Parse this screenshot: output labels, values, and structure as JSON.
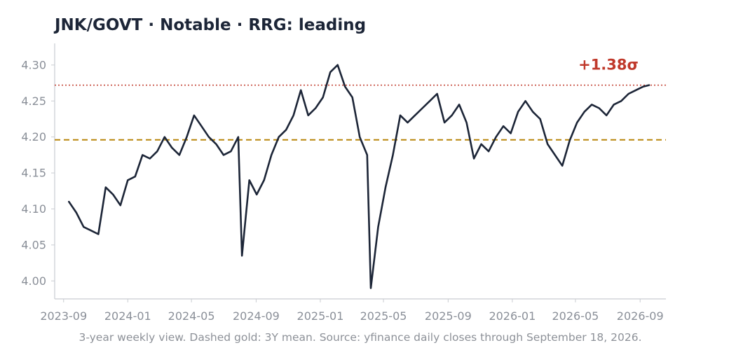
{
  "chart_data": {
    "type": "line",
    "title": "JNK/GOVT  ·  Notable  ·  RRG: leading",
    "xlabel": "",
    "ylabel": "",
    "x_ticks": [
      "2023-09",
      "2024-01",
      "2024-05",
      "2024-09",
      "2025-01",
      "2025-05",
      "2025-09",
      "2026-01",
      "2026-05",
      "2026-09"
    ],
    "y_ticks": [
      "4.00",
      "4.05",
      "4.10",
      "4.15",
      "4.20",
      "4.25",
      "4.30"
    ],
    "xlim": [
      "2023-08-15",
      "2026-10-20"
    ],
    "ylim": [
      3.975,
      4.33
    ],
    "mean_line": {
      "value": 4.196,
      "color": "#b8860b",
      "style": "dashed"
    },
    "sigma_line": {
      "value": 4.272,
      "color": "#c0392b",
      "style": "dotted",
      "label": "+1.38σ"
    },
    "line_color": "#1c2537",
    "grid": false,
    "series": [
      {
        "x": [
          "2023-09-11",
          "2023-09-25",
          "2023-10-09",
          "2023-10-23",
          "2023-11-06",
          "2023-11-20",
          "2023-12-04",
          "2023-12-18",
          "2024-01-01",
          "2024-01-15",
          "2024-01-29",
          "2024-02-12",
          "2024-02-26",
          "2024-03-11",
          "2024-03-25",
          "2024-04-08",
          "2024-04-22",
          "2024-05-06",
          "2024-05-20",
          "2024-06-03",
          "2024-06-17",
          "2024-07-01",
          "2024-07-15",
          "2024-07-29",
          "2024-08-05",
          "2024-08-19",
          "2024-09-02",
          "2024-09-16",
          "2024-09-30",
          "2024-10-14",
          "2024-10-28",
          "2024-11-11",
          "2024-11-25",
          "2024-12-09",
          "2024-12-23",
          "2025-01-06",
          "2025-01-20",
          "2025-02-03",
          "2025-02-17",
          "2025-03-03",
          "2025-03-17",
          "2025-03-31",
          "2025-04-07",
          "2025-04-21",
          "2025-05-05",
          "2025-05-19",
          "2025-06-02",
          "2025-06-16",
          "2025-06-30",
          "2025-07-14",
          "2025-07-28",
          "2025-08-11",
          "2025-08-25",
          "2025-09-08",
          "2025-09-22",
          "2025-10-06",
          "2025-10-20",
          "2025-11-03",
          "2025-11-17",
          "2025-12-01",
          "2025-12-15",
          "2025-12-29",
          "2026-01-12",
          "2026-01-26",
          "2026-02-09",
          "2026-02-23",
          "2026-03-09",
          "2026-03-23",
          "2026-04-06",
          "2026-04-20",
          "2026-05-04",
          "2026-05-18",
          "2026-06-01",
          "2026-06-15",
          "2026-06-29",
          "2026-07-13",
          "2026-07-27",
          "2026-08-10",
          "2026-08-24",
          "2026-09-07",
          "2026-09-18"
        ],
        "values": [
          4.11,
          4.095,
          4.075,
          4.07,
          4.065,
          4.13,
          4.12,
          4.105,
          4.14,
          4.145,
          4.175,
          4.17,
          4.18,
          4.2,
          4.185,
          4.175,
          4.2,
          4.23,
          4.215,
          4.2,
          4.19,
          4.175,
          4.18,
          4.2,
          4.035,
          4.14,
          4.12,
          4.14,
          4.175,
          4.2,
          4.21,
          4.23,
          4.265,
          4.23,
          4.24,
          4.255,
          4.29,
          4.3,
          4.27,
          4.255,
          4.2,
          4.175,
          3.99,
          4.075,
          4.13,
          4.175,
          4.23,
          4.22,
          4.23,
          4.24,
          4.25,
          4.26,
          4.22,
          4.23,
          4.245,
          4.22,
          4.17,
          4.19,
          4.18,
          4.2,
          4.215,
          4.205,
          4.235,
          4.25,
          4.235,
          4.225,
          4.19,
          4.175,
          4.16,
          4.195,
          4.22,
          4.235,
          4.245,
          4.24,
          4.23,
          4.245,
          4.25,
          4.26,
          4.265,
          4.27,
          4.272
        ]
      }
    ],
    "footnote": "3-year weekly view. Dashed gold: 3Y mean. Source: yfinance daily closes through September 18, 2026."
  }
}
